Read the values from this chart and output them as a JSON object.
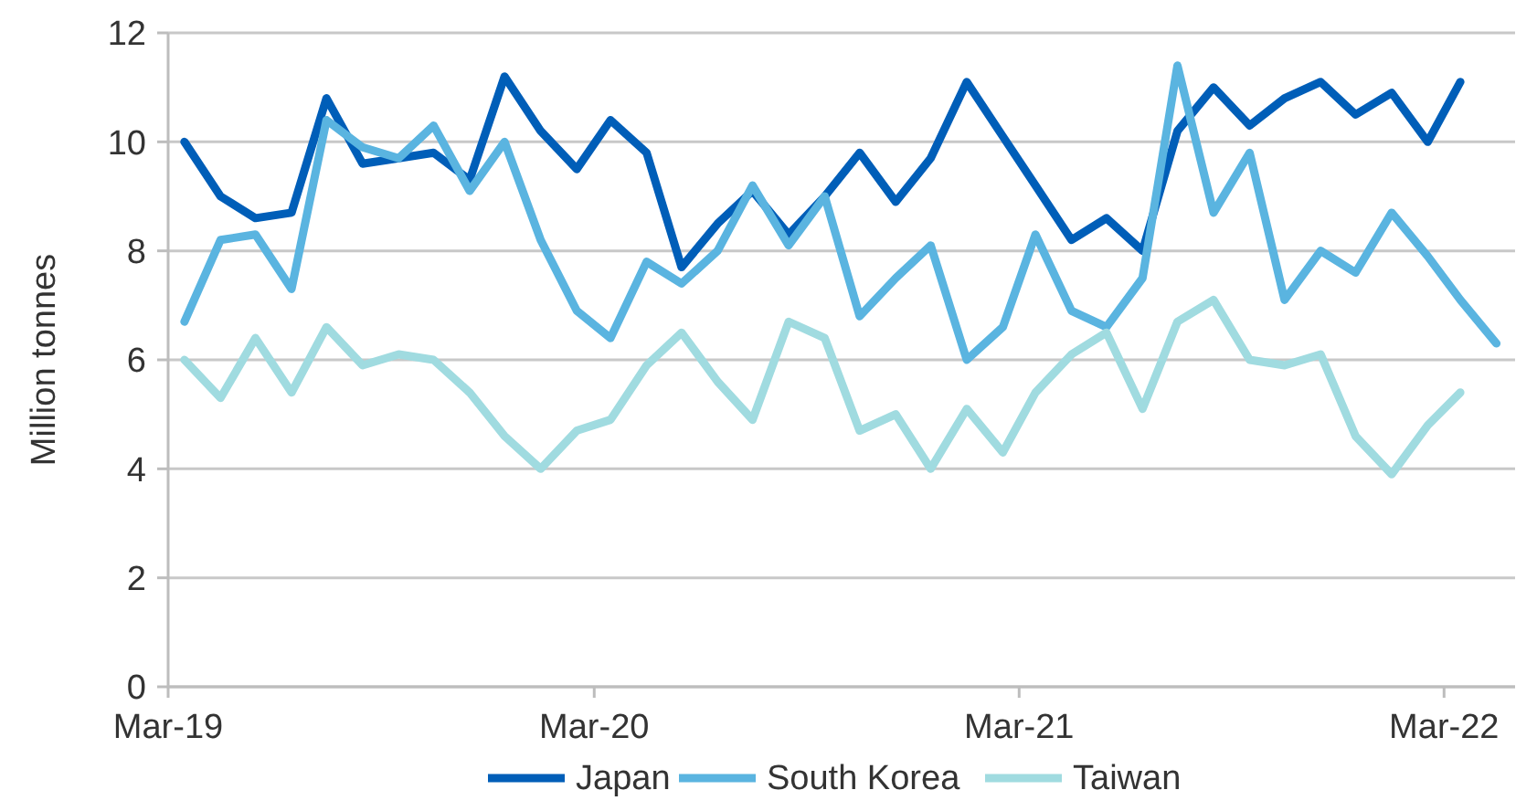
{
  "chart_data": {
    "type": "line",
    "ylabel": "Million tonnes",
    "x": [
      "2019-03-15",
      "2019-04-15",
      "2019-05-15",
      "2019-06-15",
      "2019-07-15",
      "2019-08-15",
      "2019-09-15",
      "2019-10-15",
      "2019-11-15",
      "2019-12-15",
      "2020-01-15",
      "2020-02-15",
      "2020-03-15",
      "2020-04-15",
      "2020-05-15",
      "2020-06-15",
      "2020-07-15",
      "2020-08-15",
      "2020-09-15",
      "2020-10-15",
      "2020-11-15",
      "2020-12-15",
      "2021-01-15",
      "2021-02-15",
      "2021-03-15",
      "2021-04-15",
      "2021-05-15",
      "2021-06-15",
      "2021-07-15",
      "2021-08-15",
      "2021-09-15",
      "2021-10-15",
      "2021-11-15",
      "2021-12-15",
      "2022-01-15",
      "2022-02-15",
      "2022-03-15",
      "2022-04-15"
    ],
    "xlim": [
      "2019-03-01",
      "2022-05-01"
    ],
    "xticks": [
      {
        "value": "2019-03-01",
        "label": "Mar-19"
      },
      {
        "value": "2020-03-01",
        "label": "Mar-20"
      },
      {
        "value": "2021-03-01",
        "label": "Mar-21"
      },
      {
        "value": "2022-03-01",
        "label": "Mar-22"
      }
    ],
    "ylim": [
      0,
      12
    ],
    "yticks": [
      0,
      2,
      4,
      6,
      8,
      10,
      12
    ],
    "grid": "y",
    "legend": "bottom",
    "line_style": "solid",
    "marker": "none",
    "series": [
      {
        "name": "Japan",
        "color": "#005eb8",
        "values": [
          10.0,
          9.0,
          8.6,
          8.7,
          10.8,
          9.6,
          9.7,
          9.8,
          9.3,
          11.2,
          10.2,
          9.5,
          10.4,
          9.8,
          7.7,
          8.5,
          9.1,
          8.3,
          9.0,
          9.8,
          8.9,
          9.7,
          11.1,
          10.1,
          9.2,
          8.2,
          8.6,
          8.0,
          10.2,
          11.0,
          10.3,
          10.8,
          11.1,
          10.5,
          10.9,
          10.0,
          11.1,
          null
        ]
      },
      {
        "name": "South Korea",
        "color": "#5ab4e0",
        "values": [
          6.7,
          8.2,
          8.3,
          7.3,
          10.4,
          9.9,
          9.7,
          10.3,
          9.1,
          10.0,
          8.2,
          6.9,
          6.4,
          7.8,
          7.4,
          8.0,
          9.2,
          8.1,
          9.0,
          6.8,
          7.5,
          8.1,
          6.0,
          6.6,
          8.3,
          6.9,
          6.6,
          7.5,
          11.4,
          8.7,
          9.8,
          7.1,
          8.0,
          7.6,
          8.7,
          7.9,
          7.1,
          6.3
        ]
      },
      {
        "name": "Taiwan",
        "color": "#a0dbe0",
        "values": [
          6.0,
          5.3,
          6.4,
          5.4,
          6.6,
          5.9,
          6.1,
          6.0,
          5.4,
          4.6,
          4.0,
          4.7,
          4.9,
          5.9,
          6.5,
          5.6,
          4.9,
          6.7,
          6.4,
          4.7,
          5.0,
          4.0,
          5.1,
          4.3,
          5.4,
          6.1,
          6.5,
          5.1,
          6.7,
          7.1,
          6.0,
          5.9,
          6.1,
          4.6,
          3.9,
          4.8,
          5.4,
          null
        ]
      }
    ]
  }
}
